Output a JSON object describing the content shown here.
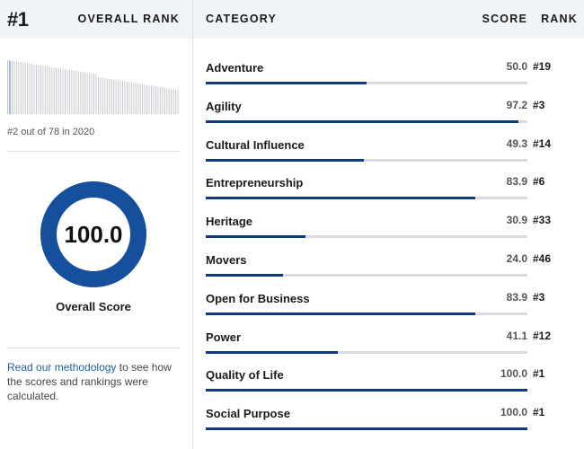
{
  "overall": {
    "rank": "#1",
    "rank_label": "OVERALL RANK",
    "caption": "#2 out of 78 in 2020",
    "score": "100.0",
    "score_fraction": 1.0,
    "score_label": "Overall Score",
    "methodology_link": "Read our methodology",
    "methodology_rest": " to see how the scores and rankings were calculated."
  },
  "table": {
    "header_category": "CATEGORY",
    "header_score": "SCORE",
    "header_rank": "RANK",
    "rows": [
      {
        "category": "Adventure",
        "score": "50.0",
        "rank": "#19",
        "value": 50.0
      },
      {
        "category": "Agility",
        "score": "97.2",
        "rank": "#3",
        "value": 97.2
      },
      {
        "category": "Cultural Influence",
        "score": "49.3",
        "rank": "#14",
        "value": 49.3
      },
      {
        "category": "Entrepreneurship",
        "score": "83.9",
        "rank": "#6",
        "value": 83.9
      },
      {
        "category": "Heritage",
        "score": "30.9",
        "rank": "#33",
        "value": 30.9
      },
      {
        "category": "Movers",
        "score": "24.0",
        "rank": "#46",
        "value": 24.0
      },
      {
        "category": "Open for Business",
        "score": "83.9",
        "rank": "#3",
        "value": 83.9
      },
      {
        "category": "Power",
        "score": "41.1",
        "rank": "#12",
        "value": 41.1
      },
      {
        "category": "Quality of Life",
        "score": "100.0",
        "rank": "#1",
        "value": 100.0
      },
      {
        "category": "Social Purpose",
        "score": "100.0",
        "rank": "#1",
        "value": 100.0
      }
    ]
  },
  "colors": {
    "accent": "#0e3a80",
    "donut": "#164f9c",
    "track": "#d9dbde",
    "header_bg": "#f1f4f7",
    "link": "#1f5fa8",
    "sparkline_bar": "#c4c7cb",
    "sparkline_highlight": "#4a78b8"
  }
}
